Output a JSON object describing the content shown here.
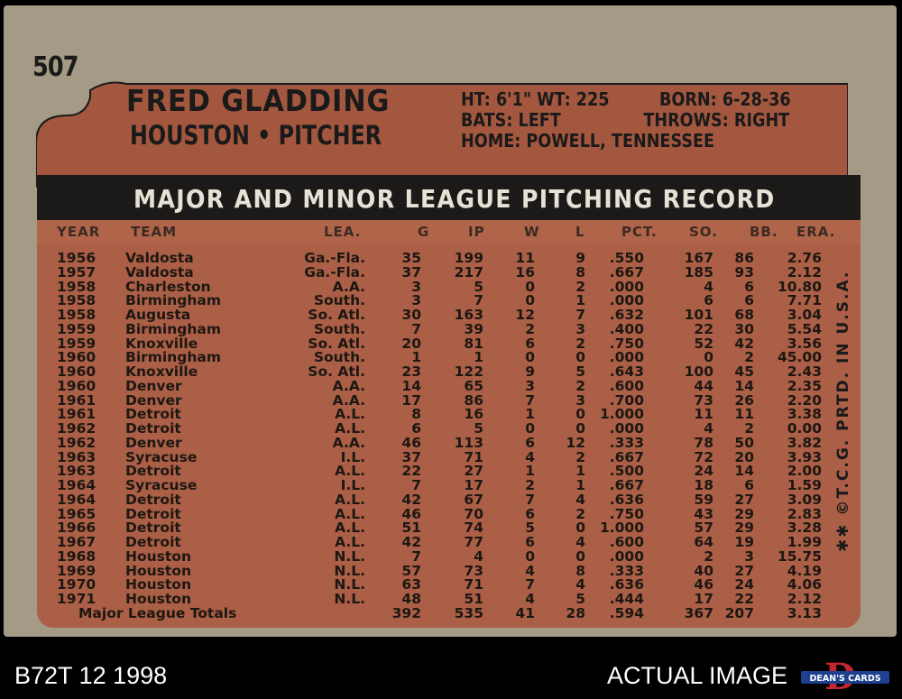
{
  "card": {
    "number": "507",
    "player_name": "FRED GLADDING",
    "team_position": "HOUSTON • PITCHER",
    "bio": {
      "ht_wt": "HT: 6'1\" WT: 225",
      "born": "BORN: 6-28-36",
      "bats": "BATS: LEFT",
      "throws": "THROWS: RIGHT",
      "home": "HOME: POWELL, TENNESSEE"
    },
    "record_title": "MAJOR AND MINOR LEAGUE PITCHING RECORD",
    "columns": [
      "YEAR",
      "TEAM",
      "LEA.",
      "G",
      "IP",
      "W",
      "L",
      "PCT.",
      "SO.",
      "BB.",
      "ERA."
    ],
    "rows": [
      [
        "1956",
        "Valdosta",
        "Ga.-Fla.",
        "35",
        "199",
        "11",
        "9",
        ".550",
        "167",
        "86",
        "2.76"
      ],
      [
        "1957",
        "Valdosta",
        "Ga.-Fla.",
        "37",
        "217",
        "16",
        "8",
        ".667",
        "185",
        "93",
        "2.12"
      ],
      [
        "1958",
        "Charleston",
        "A.A.",
        "3",
        "5",
        "0",
        "2",
        ".000",
        "4",
        "6",
        "10.80"
      ],
      [
        "1958",
        "Birmingham",
        "South.",
        "3",
        "7",
        "0",
        "1",
        ".000",
        "6",
        "6",
        "7.71"
      ],
      [
        "1958",
        "Augusta",
        "So. Atl.",
        "30",
        "163",
        "12",
        "7",
        ".632",
        "101",
        "68",
        "3.04"
      ],
      [
        "1959",
        "Birmingham",
        "South.",
        "7",
        "39",
        "2",
        "3",
        ".400",
        "22",
        "30",
        "5.54"
      ],
      [
        "1959",
        "Knoxville",
        "So. Atl.",
        "20",
        "81",
        "6",
        "2",
        ".750",
        "52",
        "42",
        "3.56"
      ],
      [
        "1960",
        "Birmingham",
        "South.",
        "1",
        "1",
        "0",
        "0",
        ".000",
        "0",
        "2",
        "45.00"
      ],
      [
        "1960",
        "Knoxville",
        "So. Atl.",
        "23",
        "122",
        "9",
        "5",
        ".643",
        "100",
        "45",
        "2.43"
      ],
      [
        "1960",
        "Denver",
        "A.A.",
        "14",
        "65",
        "3",
        "2",
        ".600",
        "44",
        "14",
        "2.35"
      ],
      [
        "1961",
        "Denver",
        "A.A.",
        "17",
        "86",
        "7",
        "3",
        ".700",
        "73",
        "26",
        "2.20"
      ],
      [
        "1961",
        "Detroit",
        "A.L.",
        "8",
        "16",
        "1",
        "0",
        "1.000",
        "11",
        "11",
        "3.38"
      ],
      [
        "1962",
        "Detroit",
        "A.L.",
        "6",
        "5",
        "0",
        "0",
        ".000",
        "4",
        "2",
        "0.00"
      ],
      [
        "1962",
        "Denver",
        "A.A.",
        "46",
        "113",
        "6",
        "12",
        ".333",
        "78",
        "50",
        "3.82"
      ],
      [
        "1963",
        "Syracuse",
        "I.L.",
        "37",
        "71",
        "4",
        "2",
        ".667",
        "72",
        "20",
        "3.93"
      ],
      [
        "1963",
        "Detroit",
        "A.L.",
        "22",
        "27",
        "1",
        "1",
        ".500",
        "24",
        "14",
        "2.00"
      ],
      [
        "1964",
        "Syracuse",
        "I.L.",
        "7",
        "17",
        "2",
        "1",
        ".667",
        "18",
        "6",
        "1.59"
      ],
      [
        "1964",
        "Detroit",
        "A.L.",
        "42",
        "67",
        "7",
        "4",
        ".636",
        "59",
        "27",
        "3.09"
      ],
      [
        "1965",
        "Detroit",
        "A.L.",
        "46",
        "70",
        "6",
        "2",
        ".750",
        "43",
        "29",
        "2.83"
      ],
      [
        "1966",
        "Detroit",
        "A.L.",
        "51",
        "74",
        "5",
        "0",
        "1.000",
        "57",
        "29",
        "3.28"
      ],
      [
        "1967",
        "Detroit",
        "A.L.",
        "42",
        "77",
        "6",
        "4",
        ".600",
        "64",
        "19",
        "1.99"
      ],
      [
        "1968",
        "Houston",
        "N.L.",
        "7",
        "4",
        "0",
        "0",
        ".000",
        "2",
        "3",
        "15.75"
      ],
      [
        "1969",
        "Houston",
        "N.L.",
        "57",
        "73",
        "4",
        "8",
        ".333",
        "40",
        "27",
        "4.19"
      ],
      [
        "1970",
        "Houston",
        "N.L.",
        "63",
        "71",
        "7",
        "4",
        ".636",
        "46",
        "24",
        "4.06"
      ],
      [
        "1971",
        "Houston",
        "N.L.",
        "48",
        "51",
        "4",
        "5",
        ".444",
        "17",
        "22",
        "2.12"
      ]
    ],
    "totals": [
      "Major League Totals",
      "392",
      "535",
      "41",
      "28",
      ".594",
      "367",
      "207",
      "3.13"
    ],
    "printed_note": "✱✱ ©T.C.G. PRTD. IN U.S.A."
  },
  "footer": {
    "card_id": "B72T 12 1998",
    "caption": "ACTUAL IMAGE",
    "logo_text": "DEAN'S CARDS"
  },
  "colors": {
    "card_gray": "#a59a86",
    "panel_rust": "#ab5f46",
    "header_dark": "#1c1a19"
  }
}
